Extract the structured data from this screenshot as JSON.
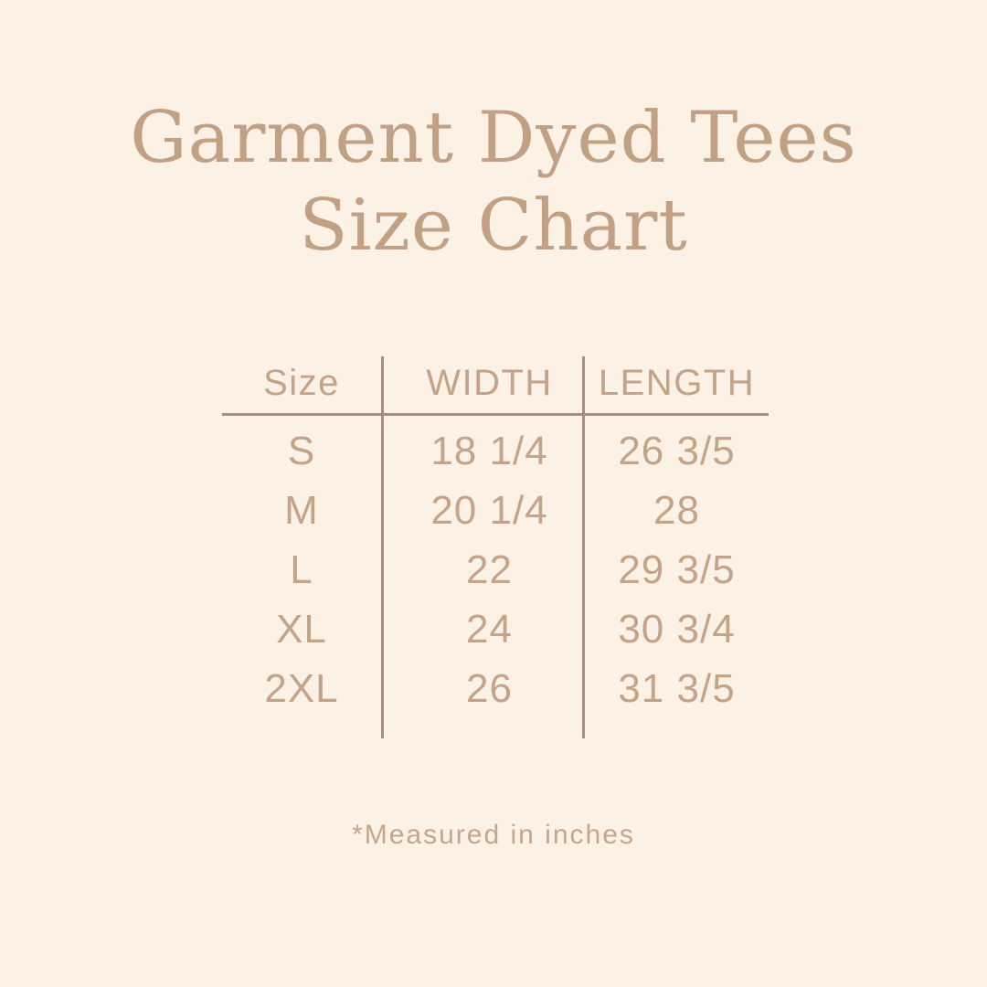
{
  "title": {
    "line1": "Garment Dyed Tees",
    "line2": "Size Chart"
  },
  "table": {
    "headers": [
      "Size",
      "WIDTH",
      "LENGTH"
    ],
    "rows": [
      [
        "S",
        "18 1/4",
        "26 3/5"
      ],
      [
        "M",
        "20 1/4",
        "28"
      ],
      [
        "L",
        "22",
        "29 3/5"
      ],
      [
        "XL",
        "24",
        "30 3/4"
      ],
      [
        "2XL",
        "26",
        "31 3/5"
      ]
    ]
  },
  "note": "*Measured in inches",
  "chart_data": {
    "type": "table",
    "title": "Garment Dyed Tees Size Chart",
    "columns": [
      "Size",
      "WIDTH",
      "LENGTH"
    ],
    "rows": [
      [
        "S",
        "18 1/4",
        "26 3/5"
      ],
      [
        "M",
        "20 1/4",
        "28"
      ],
      [
        "L",
        "22",
        "29 3/5"
      ],
      [
        "XL",
        "24",
        "30 3/4"
      ],
      [
        "2XL",
        "26",
        "31 3/5"
      ]
    ],
    "note": "*Measured in inches",
    "units": "inches"
  },
  "colors": {
    "background": "#fcf1e5",
    "title_text": "#c2a084",
    "table_text": "#c4a489",
    "rule_lines": "#a78f7f",
    "note_text": "#c3a68c"
  }
}
